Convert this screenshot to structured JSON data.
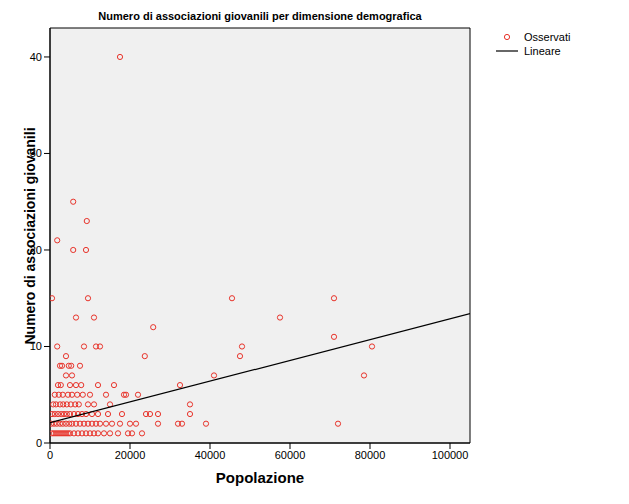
{
  "chart_data": {
    "type": "scatter",
    "title": "Numero di associazioni giovanili per dimensione demografica",
    "x_label": "Popolazione",
    "y_label": "Numero di associazioni giovanili",
    "xlim": [
      0,
      105000
    ],
    "ylim": [
      0,
      43
    ],
    "xticks": [
      0,
      20000,
      40000,
      60000,
      80000,
      100000
    ],
    "yticks": [
      0,
      10,
      20,
      30,
      40
    ],
    "grid": false,
    "legend": "right",
    "series": [
      {
        "name": "Osservati",
        "type": "scatter",
        "color": "#e8332a",
        "marker": "circle",
        "x": [
          500,
          1000,
          1500,
          2000,
          2500,
          3000,
          3500,
          4000,
          4500,
          5000,
          6000,
          7000,
          8000,
          9000,
          10000,
          11000,
          12000,
          13500,
          15000,
          17000,
          19500,
          20500,
          23000,
          300,
          1000,
          1700,
          2500,
          3200,
          4000,
          4800,
          5500,
          6500,
          7500,
          8500,
          9500,
          10500,
          11500,
          12500,
          14000,
          15500,
          17500,
          20000,
          21500,
          27000,
          32000,
          33000,
          39000,
          72000,
          500,
          1200,
          2000,
          2800,
          3500,
          4200,
          5000,
          6000,
          7000,
          8000,
          9000,
          10500,
          12000,
          14500,
          18000,
          24000,
          25000,
          27000,
          35000,
          800,
          1500,
          2500,
          3300,
          4200,
          5200,
          6300,
          7200,
          9500,
          11000,
          15000,
          35000,
          1200,
          2200,
          3200,
          4500,
          5500,
          6800,
          8200,
          10000,
          14000,
          18500,
          19000,
          22000,
          2000,
          2700,
          5000,
          6500,
          7800,
          12000,
          16000,
          32500,
          4000,
          5500,
          41000,
          78500,
          2500,
          3000,
          4700,
          5300,
          7500,
          4000,
          23700,
          47500,
          1800,
          8500,
          11500,
          12500,
          48000,
          80500,
          71000,
          25800,
          6500,
          11000,
          57500,
          500,
          9500,
          45500,
          71000,
          5800,
          9000,
          1800,
          9200,
          5800,
          17500
        ],
        "values": [
          1,
          1,
          1,
          1,
          1,
          1,
          1,
          1,
          1,
          1,
          1,
          1,
          1,
          1,
          1,
          1,
          1,
          1,
          1,
          1,
          1,
          1,
          1,
          2,
          2,
          2,
          2,
          2,
          2,
          2,
          2,
          2,
          2,
          2,
          2,
          2,
          2,
          2,
          2,
          2,
          2,
          2,
          2,
          2,
          2,
          2,
          2,
          2,
          3,
          3,
          3,
          3,
          3,
          3,
          3,
          3,
          3,
          3,
          3,
          3,
          3,
          3,
          3,
          3,
          3,
          3,
          3,
          4,
          4,
          4,
          4,
          4,
          4,
          4,
          4,
          4,
          4,
          4,
          4,
          5,
          5,
          5,
          5,
          5,
          5,
          5,
          5,
          5,
          5,
          5,
          5,
          6,
          6,
          6,
          6,
          6,
          6,
          6,
          6,
          7,
          7,
          7,
          7,
          8,
          8,
          8,
          8,
          8,
          9,
          9,
          9,
          10,
          10,
          10,
          10,
          10,
          10,
          11,
          12,
          13,
          13,
          13,
          15,
          15,
          15,
          15,
          20,
          20,
          21,
          23,
          25,
          40
        ]
      },
      {
        "name": "Lineare",
        "type": "line",
        "color": "#000000",
        "line_style": "solid",
        "x": [
          0,
          105000
        ],
        "values": [
          2.1,
          13.4
        ]
      }
    ]
  }
}
